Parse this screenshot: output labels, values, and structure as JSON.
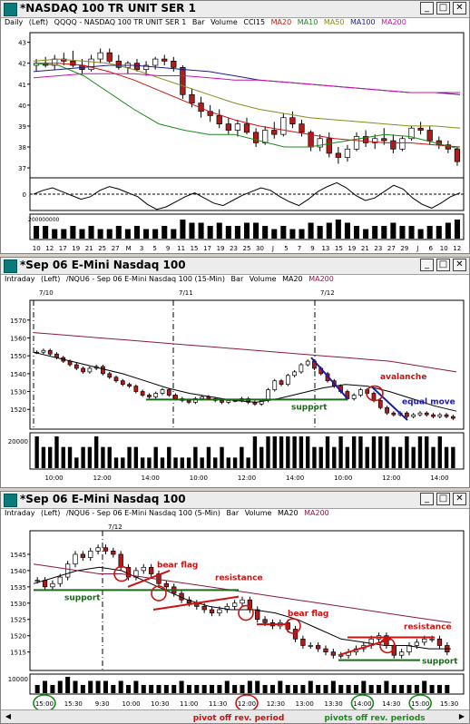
{
  "colors": {
    "up_candle": "#ffffff",
    "down_candle": "#b01c1c",
    "ma20": "#000000",
    "ma10": "#1a8a1a",
    "ma50": "#8a8a1a",
    "ma100": "#1a1a8a",
    "ma200": "#8a1a3a",
    "annotation_red": "#cc1111",
    "annotation_green": "#1a6a1a",
    "annotation_blue": "#1a1aaa"
  },
  "panels": [
    {
      "title": "*NASDAQ 100 TR UNIT SER 1",
      "interval": "Daily",
      "axis_side": "(Left)",
      "symbol": "QQQQ - NASDAQ 100 TR UNIT SER 1",
      "studies": [
        "Bar",
        "Volume",
        "CCI15"
      ],
      "ma_labels": [
        "MA20",
        "MA10",
        "MA50",
        "MA100",
        "MA200"
      ],
      "icon": "chart-icon"
    },
    {
      "title": "*Sep 06  E-Mini Nasdaq 100",
      "interval": "Intraday",
      "axis_side": "(Left)",
      "symbol": "/NQU6 - Sep 06  E-Mini Nasdaq 100 (15-Min)",
      "studies": [
        "Bar",
        "Volume"
      ],
      "ma_labels": [
        "MA20",
        "MA200"
      ],
      "icon": "chart-icon"
    },
    {
      "title": "*Sep 06  E-Mini Nasdaq 100",
      "interval": "Intraday",
      "axis_side": "(Left)",
      "symbol": "/NQU6 - Sep 06  E-Mini Nasdaq 100 (5-Min)",
      "studies": [
        "Bar",
        "Volume"
      ],
      "ma_labels": [
        "MA20",
        "MA200"
      ],
      "icon": "chart-icon"
    }
  ],
  "chart_data": [
    {
      "type": "candlestick",
      "ylim": [
        36.7,
        43.2
      ],
      "y_ticks": [
        37,
        38,
        39,
        40,
        41,
        42,
        43
      ],
      "x_tick_labels": [
        "10",
        "12",
        "17",
        "19",
        "21",
        "25",
        "27",
        "M",
        "3",
        "5",
        "9",
        "11",
        "15",
        "17",
        "19",
        "23",
        "25",
        "30",
        "J",
        "5",
        "7",
        "9",
        "13",
        "15",
        "19",
        "21",
        "23",
        "27",
        "29",
        "J",
        "6",
        "10",
        "12"
      ],
      "ohlc": [
        [
          41.9,
          42.2,
          41.6,
          42.0
        ],
        [
          42.0,
          42.3,
          41.8,
          41.9
        ],
        [
          41.9,
          42.4,
          41.7,
          42.2
        ],
        [
          42.2,
          42.5,
          41.9,
          42.1
        ],
        [
          42.1,
          42.6,
          41.8,
          41.9
        ],
        [
          41.9,
          42.2,
          41.5,
          41.7
        ],
        [
          41.7,
          42.4,
          41.6,
          42.2
        ],
        [
          42.2,
          42.7,
          42.0,
          42.5
        ],
        [
          42.5,
          42.7,
          42.0,
          42.1
        ],
        [
          42.1,
          42.4,
          41.7,
          41.8
        ],
        [
          41.8,
          42.1,
          41.5,
          42.0
        ],
        [
          42.0,
          42.2,
          41.6,
          41.7
        ],
        [
          41.7,
          42.1,
          41.4,
          41.9
        ],
        [
          41.9,
          42.3,
          41.7,
          42.2
        ],
        [
          42.2,
          42.4,
          41.9,
          42.1
        ],
        [
          42.1,
          42.3,
          41.6,
          41.8
        ],
        [
          41.8,
          41.9,
          40.3,
          40.5
        ],
        [
          40.5,
          40.8,
          39.9,
          40.1
        ],
        [
          40.1,
          40.4,
          39.4,
          39.7
        ],
        [
          39.7,
          40.0,
          39.2,
          39.5
        ],
        [
          39.5,
          39.8,
          38.9,
          39.1
        ],
        [
          39.1,
          39.4,
          38.6,
          38.8
        ],
        [
          38.8,
          39.3,
          38.5,
          39.1
        ],
        [
          39.1,
          39.4,
          38.6,
          38.7
        ],
        [
          38.7,
          38.9,
          38.0,
          38.2
        ],
        [
          38.2,
          39.0,
          38.1,
          38.8
        ],
        [
          38.8,
          39.2,
          38.4,
          38.6
        ],
        [
          38.6,
          39.6,
          38.5,
          39.4
        ],
        [
          39.4,
          39.7,
          38.9,
          39.1
        ],
        [
          39.1,
          39.3,
          38.5,
          38.7
        ],
        [
          38.7,
          38.8,
          37.8,
          38.0
        ],
        [
          38.0,
          38.6,
          37.8,
          38.4
        ],
        [
          38.4,
          38.7,
          37.5,
          37.7
        ],
        [
          37.7,
          38.0,
          37.2,
          37.5
        ],
        [
          37.5,
          38.1,
          37.3,
          37.9
        ],
        [
          37.9,
          38.7,
          37.8,
          38.5
        ],
        [
          38.5,
          38.8,
          38.0,
          38.2
        ],
        [
          38.2,
          38.6,
          37.9,
          38.4
        ],
        [
          38.4,
          38.9,
          38.1,
          38.3
        ],
        [
          38.3,
          38.6,
          37.7,
          37.9
        ],
        [
          37.9,
          38.5,
          37.8,
          38.4
        ],
        [
          38.4,
          39.0,
          38.3,
          38.9
        ],
        [
          38.9,
          39.2,
          38.6,
          38.8
        ],
        [
          38.8,
          39.0,
          38.1,
          38.3
        ],
        [
          38.3,
          38.5,
          37.9,
          38.1
        ],
        [
          38.1,
          38.3,
          37.7,
          37.9
        ],
        [
          37.9,
          38.0,
          37.1,
          37.3
        ]
      ],
      "moving_averages": {
        "MA20": [
          42.0,
          42.0,
          41.9,
          41.6,
          41.2,
          40.7,
          40.2,
          39.7,
          39.3,
          39.0,
          38.8,
          38.6,
          38.4,
          38.3,
          38.2,
          38.2,
          38.1,
          38.0
        ],
        "MA10": [
          42.0,
          41.9,
          41.4,
          40.6,
          39.8,
          39.1,
          38.8,
          38.6,
          38.6,
          38.3,
          38.0,
          38.0,
          38.2,
          38.4,
          38.6,
          38.5,
          38.2,
          37.9
        ],
        "MA50": [
          42.1,
          42.2,
          42.1,
          42.0,
          41.7,
          41.3,
          40.9,
          40.5,
          40.1,
          39.8,
          39.6,
          39.4,
          39.3,
          39.2,
          39.1,
          39.0,
          39.0,
          38.9
        ],
        "MA100": [
          41.6,
          41.7,
          41.8,
          41.9,
          41.9,
          41.8,
          41.7,
          41.6,
          41.4,
          41.2,
          41.1,
          41.0,
          40.9,
          40.8,
          40.7,
          40.6,
          40.6,
          40.5
        ],
        "MA200": [
          41.3,
          41.4,
          41.5,
          41.5,
          41.5,
          41.4,
          41.4,
          41.3,
          41.2,
          41.2,
          41.1,
          41.0,
          40.9,
          40.8,
          40.7,
          40.6,
          40.6,
          40.6
        ]
      },
      "cci_label": "0",
      "volume_label": "200000000",
      "volume": [
        4,
        4,
        3,
        3,
        4,
        3,
        4,
        3,
        3,
        4,
        3,
        4,
        3,
        3,
        4,
        3,
        6,
        5,
        5,
        4,
        5,
        4,
        4,
        5,
        5,
        4,
        3,
        4,
        3,
        3,
        5,
        4,
        5,
        6,
        5,
        4,
        3,
        4,
        4,
        5,
        4,
        4,
        3,
        4,
        4,
        5,
        6
      ]
    },
    {
      "type": "candlestick",
      "ylim": [
        1512,
        1577
      ],
      "y_ticks": [
        1520,
        1530,
        1540,
        1550,
        1560,
        1570
      ],
      "session_labels": [
        "7/10",
        "7/11",
        "7/12"
      ],
      "x_tick_labels": [
        "10:00",
        "12:00",
        "14:00",
        "10:00",
        "12:00",
        "14:00",
        "10:00",
        "12:00",
        "14:00"
      ],
      "closes": [
        1552,
        1553,
        1551,
        1549,
        1547,
        1545,
        1543,
        1541,
        1543,
        1544,
        1540,
        1538,
        1536,
        1534,
        1533,
        1530,
        1528,
        1527,
        1529,
        1531,
        1528,
        1526,
        1525,
        1524,
        1526,
        1527,
        1526,
        1525,
        1524,
        1525,
        1525,
        1526,
        1524,
        1523,
        1525,
        1531,
        1536,
        1534,
        1539,
        1541,
        1545,
        1547,
        1543,
        1540,
        1536,
        1533,
        1530,
        1526,
        1528,
        1531,
        1529,
        1525,
        1521,
        1518,
        1517,
        1518,
        1516,
        1517,
        1518,
        1517,
        1516,
        1517,
        1516,
        1515
      ],
      "ma20": [
        1552,
        1549,
        1546,
        1543,
        1540,
        1536,
        1532,
        1529,
        1527,
        1525,
        1524,
        1526,
        1529,
        1532,
        1534,
        1533,
        1530,
        1526,
        1522,
        1519
      ],
      "ma200": [
        1563,
        1562,
        1561,
        1560,
        1559,
        1558,
        1557,
        1556,
        1555,
        1554,
        1553,
        1552,
        1551,
        1550,
        1549,
        1548,
        1547,
        1545,
        1543,
        1541
      ],
      "annotations": [
        "avalanche",
        "equal move",
        "support"
      ],
      "volume_label": "20000",
      "volume": [
        3,
        2,
        2,
        3,
        2,
        2,
        1,
        2,
        2,
        3,
        2,
        2,
        1,
        1,
        2,
        2,
        1,
        1,
        2,
        1,
        2,
        1,
        1,
        1,
        2,
        1,
        2,
        1,
        2,
        1,
        1,
        2,
        1,
        3,
        2,
        3,
        3,
        3,
        3,
        3,
        3,
        3,
        2,
        2,
        3,
        2,
        3,
        2,
        3,
        3,
        2,
        3,
        3,
        3,
        2,
        2,
        3,
        2,
        3,
        3,
        2,
        3,
        2,
        2
      ]
    },
    {
      "type": "candlestick",
      "ylim": [
        1511,
        1550
      ],
      "y_ticks": [
        1515,
        1520,
        1525,
        1530,
        1535,
        1540,
        1545
      ],
      "session_labels": [
        "7/12"
      ],
      "x_tick_labels": [
        "15:00",
        "15:30",
        "9:30",
        "10:00",
        "10:30",
        "11:00",
        "11:30",
        "12:00",
        "12:30",
        "13:00",
        "13:30",
        "14:00",
        "14:30",
        "15:00",
        "15:30"
      ],
      "circled_ticks": [
        "12:00",
        "14:00",
        "15:00"
      ],
      "closes": [
        1537,
        1535,
        1536,
        1538,
        1542,
        1545,
        1544,
        1546,
        1547,
        1546,
        1545,
        1541,
        1538,
        1540,
        1541,
        1539,
        1536,
        1535,
        1533,
        1531,
        1530,
        1529,
        1528,
        1527,
        1528,
        1529,
        1530,
        1531,
        1528,
        1525,
        1524,
        1523,
        1524,
        1522,
        1519,
        1517,
        1517,
        1516,
        1515,
        1514,
        1514,
        1515,
        1516,
        1517,
        1519,
        1520,
        1517,
        1514,
        1515,
        1517,
        1518,
        1519,
        1519,
        1517,
        1515
      ],
      "ma20": [
        1536,
        1538,
        1540,
        1541,
        1540,
        1537,
        1534,
        1531,
        1529,
        1528,
        1528,
        1527,
        1525,
        1522,
        1519,
        1518,
        1517,
        1517,
        1516,
        1516
      ],
      "ma200": [
        1542,
        1541,
        1540,
        1539,
        1539,
        1538,
        1537,
        1536,
        1535,
        1534,
        1533,
        1532,
        1531,
        1530,
        1529,
        1528,
        1527,
        1526,
        1525,
        1524
      ],
      "annotations": [
        "bear flag",
        "resistance",
        "bear flag",
        "resistance",
        "support",
        "support"
      ],
      "footer_labels": [
        "pivot off rev. period",
        "pivots off rev. periods"
      ],
      "volume_label": "10000",
      "volume": [
        2,
        3,
        2,
        3,
        4,
        3,
        2,
        3,
        3,
        3,
        2,
        3,
        2,
        3,
        2,
        2,
        2,
        2,
        2,
        3,
        2,
        2,
        2,
        2,
        2,
        3,
        2,
        2,
        3,
        3,
        2,
        2,
        3,
        2,
        2,
        2,
        3,
        2,
        2,
        3,
        2,
        2,
        2,
        3,
        2,
        2,
        3,
        2,
        2,
        2,
        2,
        3,
        2,
        2,
        2
      ]
    }
  ]
}
